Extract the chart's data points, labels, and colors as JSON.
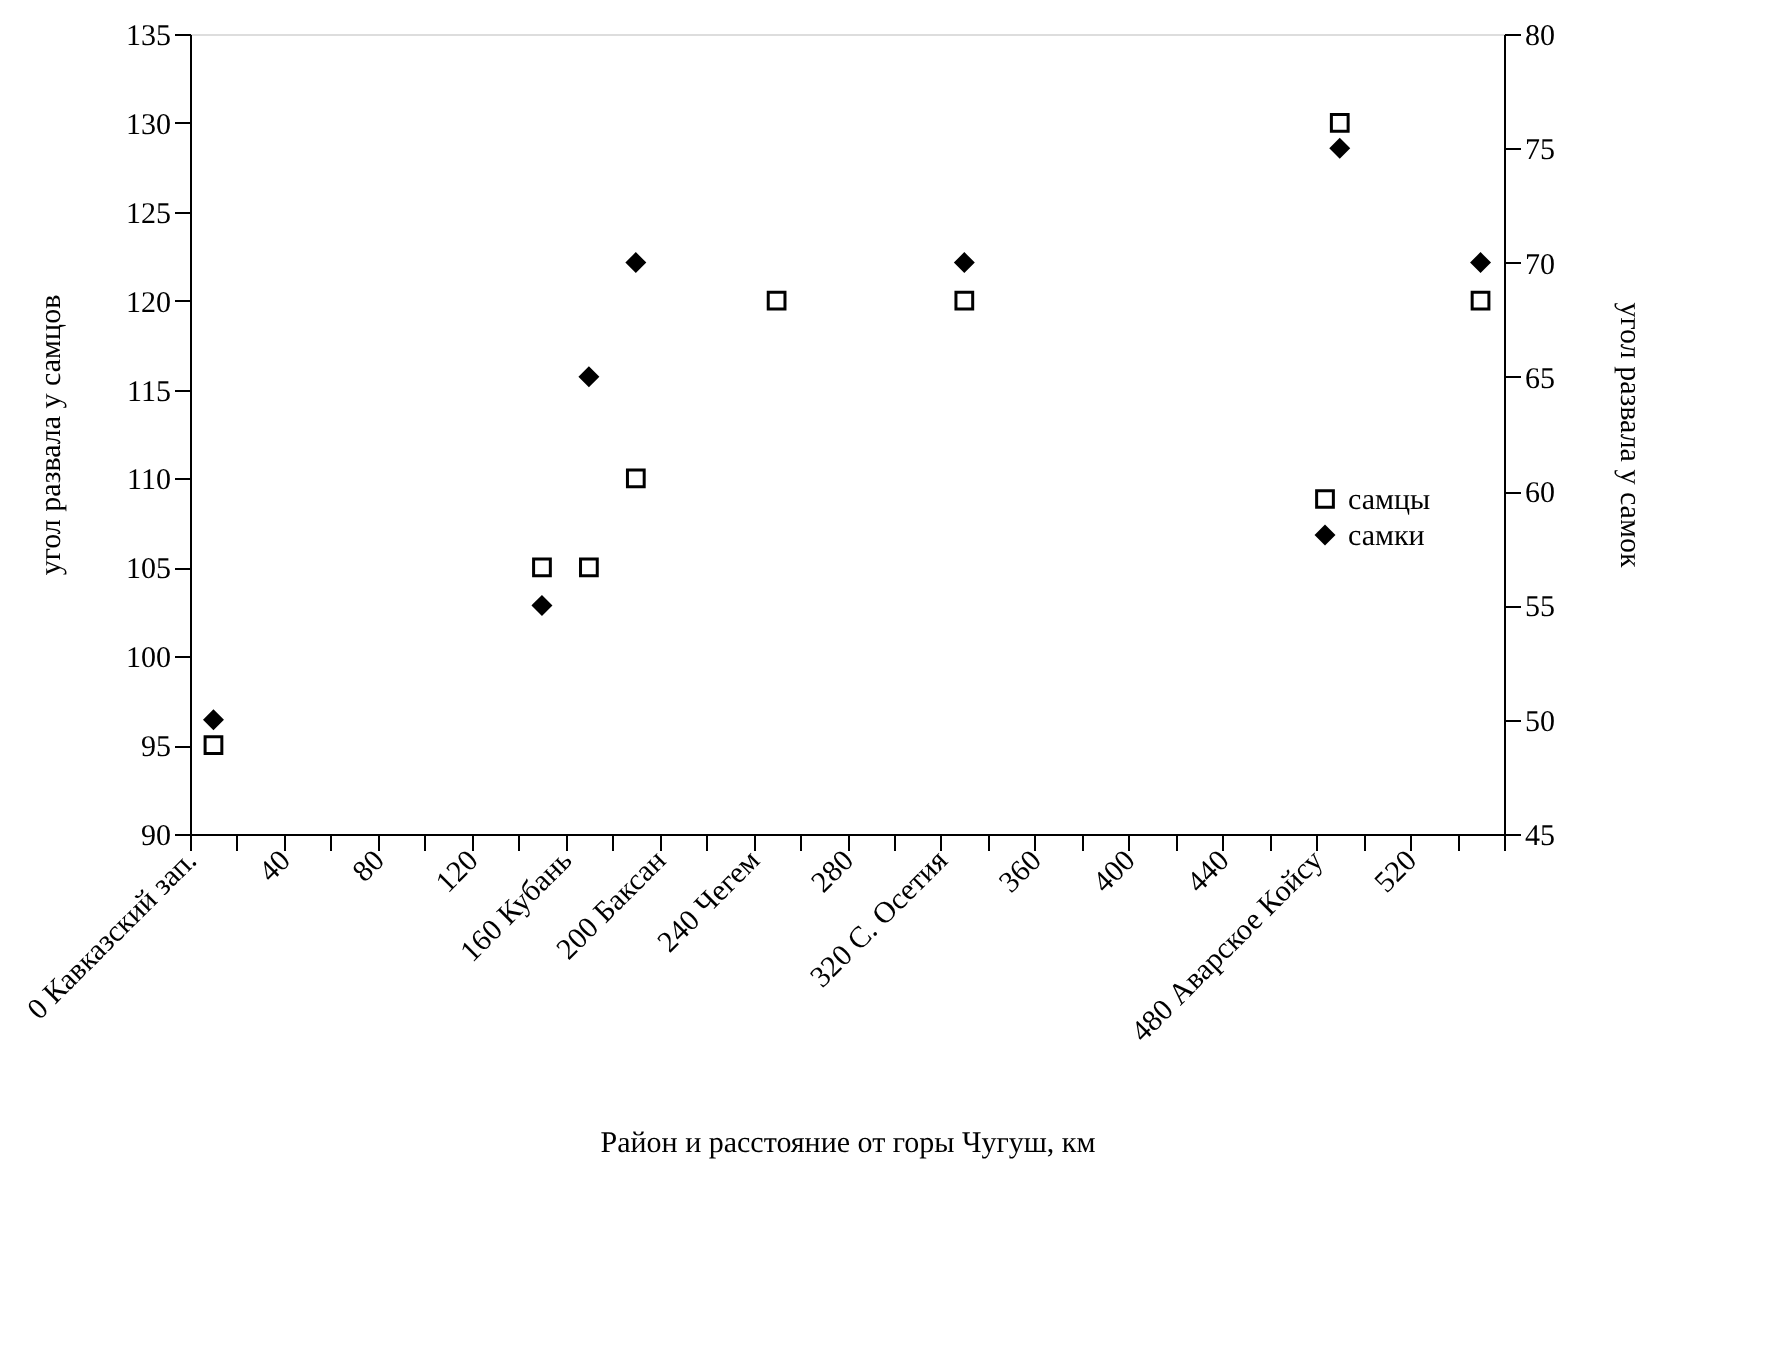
{
  "chart_data": {
    "type": "scatter",
    "xlabel": "Район и расстояние от горы Чугуш, км",
    "ylabel": "угол развала у самцов",
    "y2label": "угол развала у самок",
    "xlim": [
      0,
      560
    ],
    "xticks": [
      {
        "value": 0,
        "label": "0 Кавказский зап."
      },
      {
        "value": 20,
        "label": null
      },
      40,
      {
        "value": 60,
        "label": null
      },
      80,
      {
        "value": 100,
        "label": null
      },
      120,
      {
        "value": 140,
        "label": null
      },
      {
        "value": 160,
        "label": "160 Кубань"
      },
      {
        "value": 180,
        "label": null
      },
      {
        "value": 200,
        "label": "200 Баксан"
      },
      {
        "value": 220,
        "label": null
      },
      {
        "value": 240,
        "label": "240 Чегем"
      },
      {
        "value": 260,
        "label": null
      },
      280,
      {
        "value": 300,
        "label": null
      },
      {
        "value": 320,
        "label": "320 С. Осетия"
      },
      {
        "value": 340,
        "label": null
      },
      360,
      {
        "value": 380,
        "label": null
      },
      400,
      {
        "value": 420,
        "label": null
      },
      440,
      {
        "value": 460,
        "label": null
      },
      {
        "value": 480,
        "label": "480 Аварское Койсу"
      },
      {
        "value": 500,
        "label": null
      },
      520,
      {
        "value": 540,
        "label": null
      },
      {
        "value": 560,
        "label": null
      }
    ],
    "ylim": [
      90,
      135
    ],
    "yticks": [
      90,
      95,
      100,
      105,
      110,
      115,
      120,
      125,
      130,
      135
    ],
    "y2lim": [
      45,
      80
    ],
    "y2ticks": [
      45,
      50,
      55,
      60,
      65,
      70,
      75,
      80
    ],
    "grid": false,
    "legend": "right",
    "series": [
      {
        "name": "самцы",
        "color": "#000000",
        "marker": "square",
        "x": [
          10,
          150,
          170,
          190,
          250,
          330,
          490,
          550
        ],
        "values": [
          95,
          105,
          105,
          110,
          120,
          120,
          130,
          120
        ]
      },
      {
        "name": "самки",
        "color": "#000000",
        "marker": "diamond",
        "axis": "y2",
        "x": [
          10,
          150,
          170,
          190,
          330,
          490,
          550
        ],
        "values": [
          50,
          55,
          65,
          70,
          70,
          75,
          70
        ]
      }
    ]
  }
}
